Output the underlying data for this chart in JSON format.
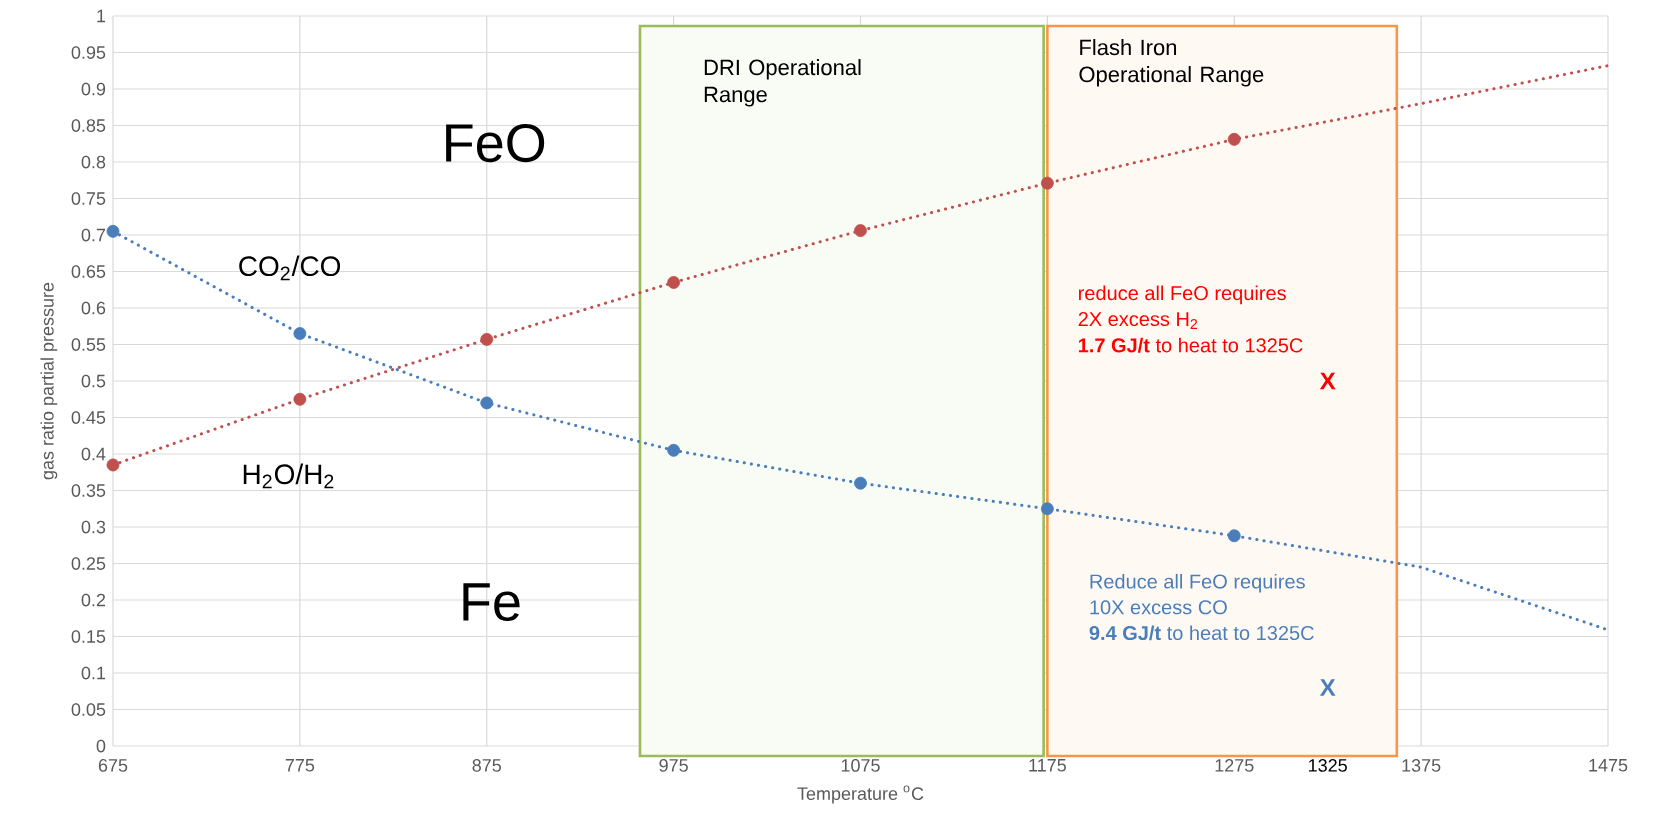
{
  "chart_data": {
    "type": "scatter",
    "xlabel": "Temperature $^{o}$C",
    "ylabel": "gas ratio partial pressure",
    "xlim": [
      675,
      1475
    ],
    "ylim": [
      0,
      1
    ],
    "xticks": [
      675,
      775,
      875,
      975,
      1075,
      1175,
      1275,
      {
        "value": 1325,
        "label": "1325"
      },
      1375,
      1475
    ],
    "yticks": [
      0,
      0.05,
      0.1,
      0.15,
      0.2,
      0.25,
      0.3,
      0.35,
      0.4,
      0.45,
      0.5,
      0.55,
      0.6,
      0.65,
      0.7,
      0.75,
      0.8,
      0.85,
      0.9,
      0.95,
      1
    ],
    "grid": true,
    "series": [
      {
        "name": "CO$_{2}$/CO",
        "marker": "circle",
        "color": "#4a7ebb",
        "x": [
          675,
          775,
          875,
          975,
          1075,
          1175,
          1275
        ],
        "values": [
          0.705,
          0.565,
          0.47,
          0.405,
          0.36,
          0.325,
          0.288
        ]
      },
      {
        "name": "H$_{2}$O/H$_{2}$",
        "marker": "circle",
        "color": "#c0504d",
        "x": [
          675,
          775,
          875,
          975,
          1075,
          1175,
          1275
        ],
        "values": [
          0.385,
          0.475,
          0.557,
          0.635,
          0.706,
          0.771,
          0.831
        ]
      },
      {
        "type": "line",
        "marker": "none",
        "line_style": "dotted",
        "color": "#4a7ebb",
        "x": [
          675,
          775,
          875,
          975,
          1075,
          1175,
          1275,
          1375,
          1475
        ],
        "values": [
          0.705,
          0.565,
          0.47,
          0.405,
          0.36,
          0.325,
          0.288,
          0.245,
          0.159
        ]
      },
      {
        "type": "line",
        "marker": "none",
        "line_style": "dotted",
        "color": "#c0504d",
        "x": [
          675,
          775,
          875,
          975,
          1075,
          1175,
          1275,
          1375,
          1475
        ],
        "values": [
          0.385,
          0.475,
          0.557,
          0.635,
          0.706,
          0.771,
          0.831,
          0.88,
          0.932
        ]
      }
    ],
    "bands": [
      {
        "axis": "x",
        "from": 957,
        "to": 1173,
        "label": "DRI Operational Range",
        "color": "#9bbb59"
      },
      {
        "axis": "x",
        "from": 1175,
        "to": 1362,
        "label": "Flash Iron Operational Range",
        "color": "#f79646"
      }
    ],
    "annotations": [
      "FeO",
      "Fe",
      "reduce all FeO requires",
      "2X excess H$_{2}$",
      "**1.7 GJ/t** to heat to 1325C",
      "Reduce all FeO requires",
      "10X excess CO",
      "**9.4 GJ/t** to heat to 1325C",
      "X",
      "X"
    ]
  }
}
